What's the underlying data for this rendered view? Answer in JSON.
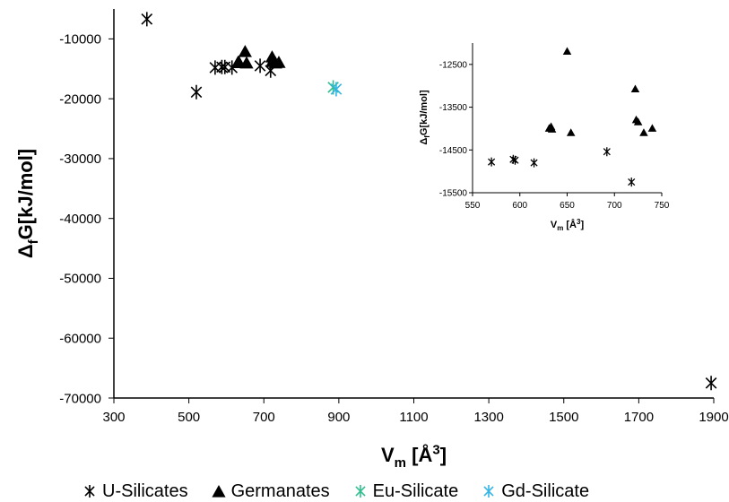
{
  "chart_data": [
    {
      "type": "scatter",
      "xlabel_main": "V",
      "xlabel_sub": "m",
      "xlabel_unit_pre": " [Å",
      "xlabel_unit_sup": "3",
      "xlabel_unit_post": "]",
      "ylabel_main": "Δ",
      "ylabel_sub": "f",
      "ylabel_rest": "G[kJ/mol]",
      "xlim": [
        300,
        1900
      ],
      "ylim": [
        -70000,
        -5000
      ],
      "xticks": [
        "300",
        "500",
        "700",
        "900",
        "1100",
        "1300",
        "1500",
        "1700",
        "1900"
      ],
      "yticks": [
        "-10000",
        "-20000",
        "-30000",
        "-40000",
        "-50000",
        "-60000",
        "-70000"
      ],
      "series": [
        {
          "name": "U-Silicates",
          "marker": "asterisk",
          "color": "#000000",
          "x": [
            388,
            520,
            570,
            588,
            596,
            615,
            690,
            718,
            1893
          ],
          "y": [
            -6700,
            -18900,
            -14800,
            -14700,
            -14700,
            -14800,
            -14500,
            -15300,
            -67500
          ]
        },
        {
          "name": "Germanates",
          "marker": "triangle",
          "color": "#000000",
          "x": [
            631,
            633,
            634,
            650,
            654,
            722,
            723,
            725,
            731,
            740
          ],
          "y": [
            -14000,
            -13950,
            -14050,
            -12200,
            -14100,
            -13100,
            -13800,
            -13850,
            -14100,
            -14000
          ]
        },
        {
          "name": "Eu-Silicate",
          "marker": "asterisk",
          "color": "#2fbf8f",
          "x": [
            885
          ],
          "y": [
            -18100
          ]
        },
        {
          "name": "Gd-Silicate",
          "marker": "asterisk",
          "color": "#33b5e5",
          "x": [
            893
          ],
          "y": [
            -18400
          ]
        }
      ]
    },
    {
      "type": "scatter",
      "xlabel_main": "V",
      "xlabel_sub": "m",
      "xlabel_unit_pre": " [Å",
      "xlabel_unit_sup": "3",
      "xlabel_unit_post": "]",
      "ylabel_main": "Δ",
      "ylabel_sub": "f",
      "ylabel_rest": "G[kJ/mol]",
      "xlim": [
        550,
        750
      ],
      "ylim": [
        -15500,
        -12000
      ],
      "xticks": [
        "550",
        "600",
        "650",
        "700",
        "750"
      ],
      "yticks": [
        "-12500",
        "-13500",
        "-14500",
        "-15500"
      ],
      "series": [
        {
          "name": "U-Silicates",
          "marker": "asterisk",
          "color": "#000000",
          "x": [
            570,
            593,
            595,
            615,
            692,
            718
          ],
          "y": [
            -14780,
            -14720,
            -14740,
            -14800,
            -14540,
            -15250
          ]
        },
        {
          "name": "Germanates",
          "marker": "triangle",
          "color": "#000000",
          "x": [
            631,
            633,
            634,
            650,
            654,
            722,
            723,
            725,
            731,
            740
          ],
          "y": [
            -14000,
            -13960,
            -14020,
            -12200,
            -14100,
            -13080,
            -13800,
            -13850,
            -14100,
            -14000
          ]
        }
      ]
    }
  ],
  "legend": [
    {
      "label": "U-Silicates",
      "marker": "asterisk",
      "color": "#000000"
    },
    {
      "label": "Germanates",
      "marker": "triangle",
      "color": "#000000"
    },
    {
      "label": "Eu-Silicate",
      "marker": "asterisk",
      "color": "#2fbf8f"
    },
    {
      "label": "Gd-Silicate",
      "marker": "asterisk",
      "color": "#33b5e5"
    }
  ]
}
